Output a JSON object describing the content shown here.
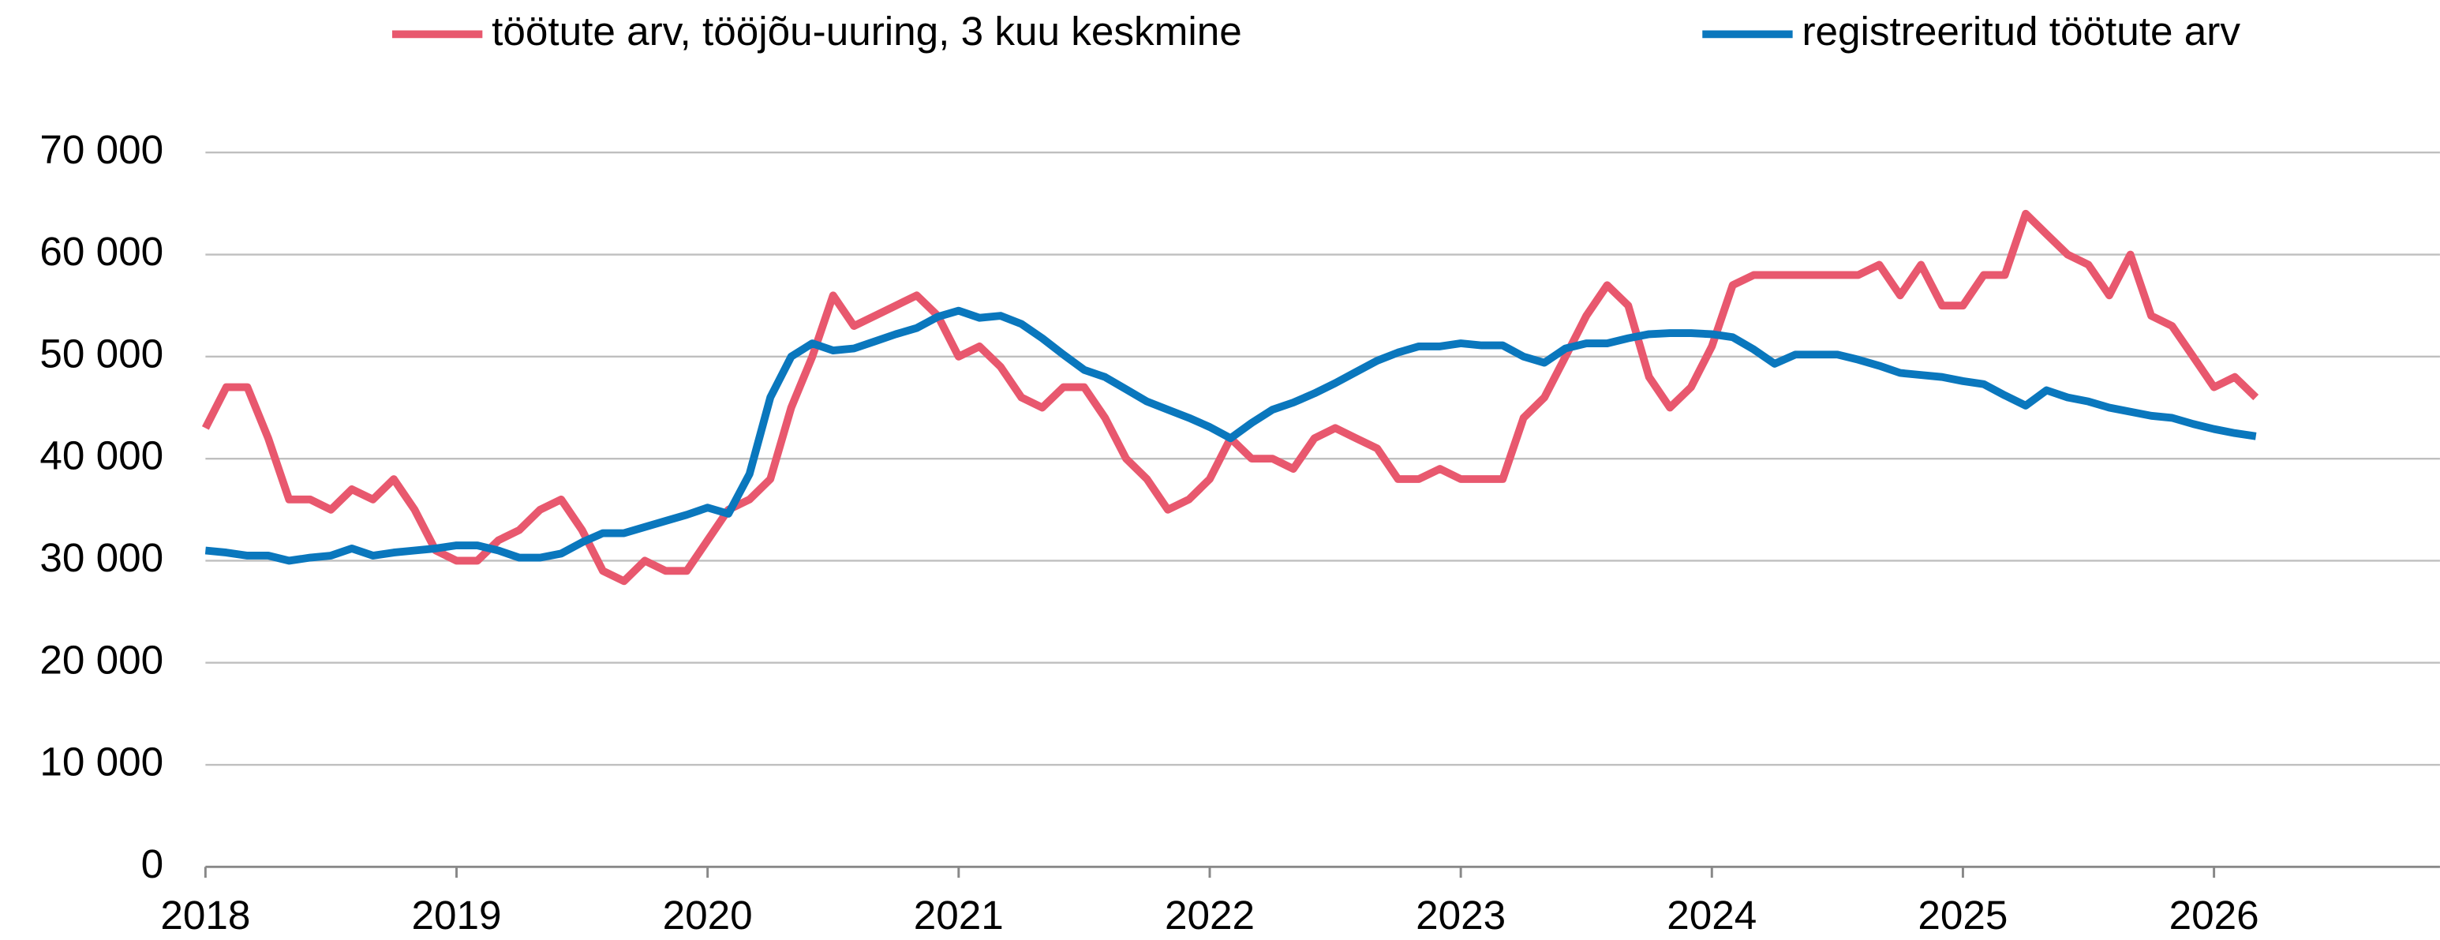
{
  "chart_data": {
    "type": "line",
    "x": [
      2018,
      2018.083,
      2018.167,
      2018.25,
      2018.333,
      2018.417,
      2018.5,
      2018.583,
      2018.667,
      2018.75,
      2018.833,
      2018.917,
      2019,
      2019.083,
      2019.167,
      2019.25,
      2019.333,
      2019.417,
      2019.5,
      2019.583,
      2019.667,
      2019.75,
      2019.833,
      2019.917,
      2020,
      2020.083,
      2020.167,
      2020.25,
      2020.333,
      2020.417,
      2020.5,
      2020.583,
      2020.667,
      2020.75,
      2020.833,
      2020.917,
      2021,
      2021.083,
      2021.167,
      2021.25,
      2021.333,
      2021.417,
      2021.5,
      2021.583,
      2021.667,
      2021.75,
      2021.833,
      2021.917,
      2022,
      2022.083,
      2022.167,
      2022.25,
      2022.333,
      2022.417,
      2022.5,
      2022.583,
      2022.667,
      2022.75,
      2022.833,
      2022.917,
      2023,
      2023.083,
      2023.167,
      2023.25,
      2023.333,
      2023.417,
      2023.5,
      2023.583,
      2023.667,
      2023.75,
      2023.833,
      2023.917,
      2024,
      2024.083,
      2024.167,
      2024.25,
      2024.333,
      2024.417,
      2024.5,
      2024.583,
      2024.667,
      2024.75,
      2024.833,
      2024.917,
      2025,
      2025.083,
      2025.167,
      2025.25,
      2025.333,
      2025.417,
      2025.5,
      2025.583,
      2025.667,
      2025.75,
      2025.833,
      2025.917,
      2026,
      2026.083,
      2026.167
    ],
    "series": [
      {
        "name": "töötute arv, tööjõu-uuring, 3 kuu keskmine",
        "color": "#e8586e",
        "values": [
          43000,
          47000,
          47000,
          42000,
          36000,
          36000,
          35000,
          37000,
          36000,
          38000,
          35000,
          31000,
          30000,
          30000,
          32000,
          33000,
          35000,
          36000,
          33000,
          29000,
          28000,
          30000,
          29000,
          29000,
          32000,
          35000,
          36000,
          38000,
          45000,
          50000,
          56000,
          53000,
          54000,
          55000,
          56000,
          54000,
          50000,
          51000,
          49000,
          46000,
          45000,
          47000,
          47000,
          44000,
          40000,
          38000,
          35000,
          36000,
          38000,
          42000,
          40000,
          40000,
          39000,
          42000,
          43000,
          42000,
          41000,
          38000,
          38000,
          39000,
          38000,
          38000,
          38000,
          44000,
          46000,
          50000,
          54000,
          57000,
          55000,
          48000,
          45000,
          47000,
          51000,
          57000,
          58000,
          58000,
          58000,
          58000,
          58000,
          58000,
          59000,
          56000,
          59000,
          55000,
          55000,
          58000,
          58000,
          64000,
          62000,
          60000,
          59000,
          56000,
          60000,
          54000,
          53000,
          50000,
          47000,
          48000,
          46000
        ]
      },
      {
        "name": "registreeritud töötute arv",
        "color": "#0a77bd",
        "values": [
          31000,
          30800,
          30500,
          30500,
          30000,
          30300,
          30500,
          31200,
          30500,
          30800,
          31000,
          31200,
          31500,
          31500,
          31000,
          30300,
          30300,
          30700,
          31800,
          32700,
          32700,
          33300,
          33900,
          34500,
          35200,
          34600,
          38500,
          46000,
          50000,
          51300,
          50600,
          50800,
          51500,
          52200,
          52800,
          53900,
          54500,
          53800,
          54000,
          53200,
          51800,
          50200,
          48700,
          48000,
          46800,
          45600,
          44800,
          44000,
          43100,
          42000,
          43500,
          44800,
          45500,
          46400,
          47400,
          48500,
          49600,
          50400,
          51000,
          51000,
          51300,
          51100,
          51100,
          50000,
          49400,
          50800,
          51300,
          51300,
          51800,
          52200,
          52300,
          52300,
          52200,
          51900,
          50700,
          49300,
          50200,
          50200,
          50200,
          49700,
          49100,
          48400,
          48200,
          48000,
          47600,
          47300,
          46200,
          45200,
          46700,
          46000,
          45600,
          45000,
          44600,
          44200,
          44000,
          43400,
          42900,
          42500,
          42200
        ]
      }
    ],
    "xlim": [
      2018,
      2026.9
    ],
    "xticks": [
      2018,
      2019,
      2020,
      2021,
      2022,
      2023,
      2024,
      2025,
      2026
    ],
    "ylim": [
      0,
      70000
    ],
    "yticks": [
      0,
      {
        "value": 10000,
        "label": "10 000"
      },
      {
        "value": 20000,
        "label": "20 000"
      },
      {
        "value": 30000,
        "label": "30 000"
      },
      {
        "value": 40000,
        "label": "40 000"
      },
      {
        "value": 50000,
        "label": "50 000"
      },
      {
        "value": 60000,
        "label": "60 000"
      },
      {
        "value": 70000,
        "label": "70 000"
      }
    ],
    "grid": true,
    "legend": "top"
  }
}
